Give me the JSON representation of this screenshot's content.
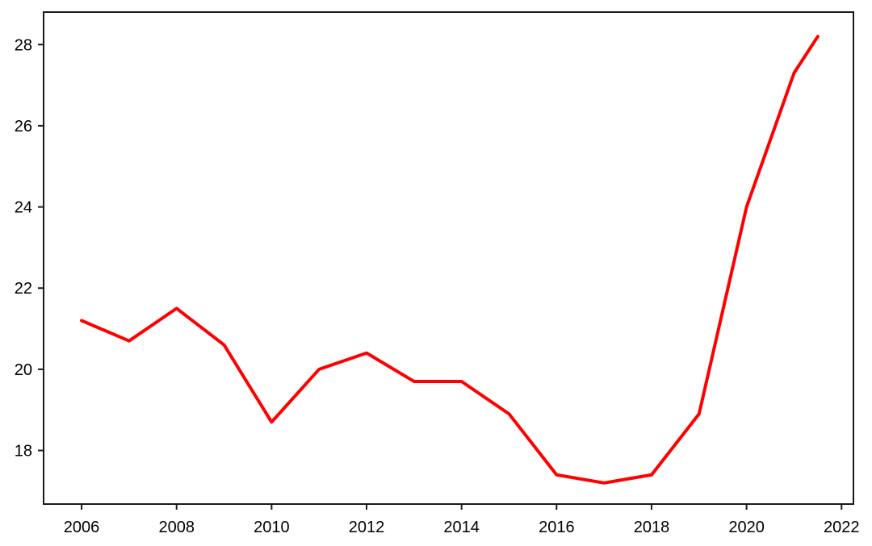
{
  "figure": {
    "background": "#ffffff",
    "axis_color": "#1a1a1a",
    "text_color": "#000000"
  },
  "chart_data": {
    "type": "line",
    "title": "",
    "xlabel": "",
    "ylabel": "",
    "grid": false,
    "legend": false,
    "xlim": [
      2005.2,
      2022.25
    ],
    "ylim": [
      16.68,
      28.8
    ],
    "xtick_values": [
      2006,
      2008,
      2010,
      2012,
      2014,
      2016,
      2018,
      2020,
      2022
    ],
    "xtick_labels": [
      "2006",
      "2008",
      "2010",
      "2012",
      "2014",
      "2016",
      "2018",
      "2020",
      "2022"
    ],
    "ytick_values": [
      18,
      20,
      22,
      24,
      26,
      28
    ],
    "ytick_labels": [
      "18",
      "20",
      "22",
      "24",
      "26",
      "28"
    ],
    "series": [
      {
        "name": "red-line",
        "color": "#ff0000",
        "line_width": 4,
        "x": [
          2006,
          2007,
          2008,
          2009,
          2010,
          2011,
          2012,
          2013,
          2014,
          2015,
          2016,
          2017,
          2018,
          2019,
          2020,
          2021,
          2021.5
        ],
        "values": [
          21.2,
          20.7,
          21.5,
          20.6,
          18.7,
          20.0,
          20.4,
          19.7,
          19.7,
          18.9,
          17.4,
          17.2,
          17.4,
          18.9,
          24.0,
          27.3,
          28.2
        ]
      }
    ]
  }
}
